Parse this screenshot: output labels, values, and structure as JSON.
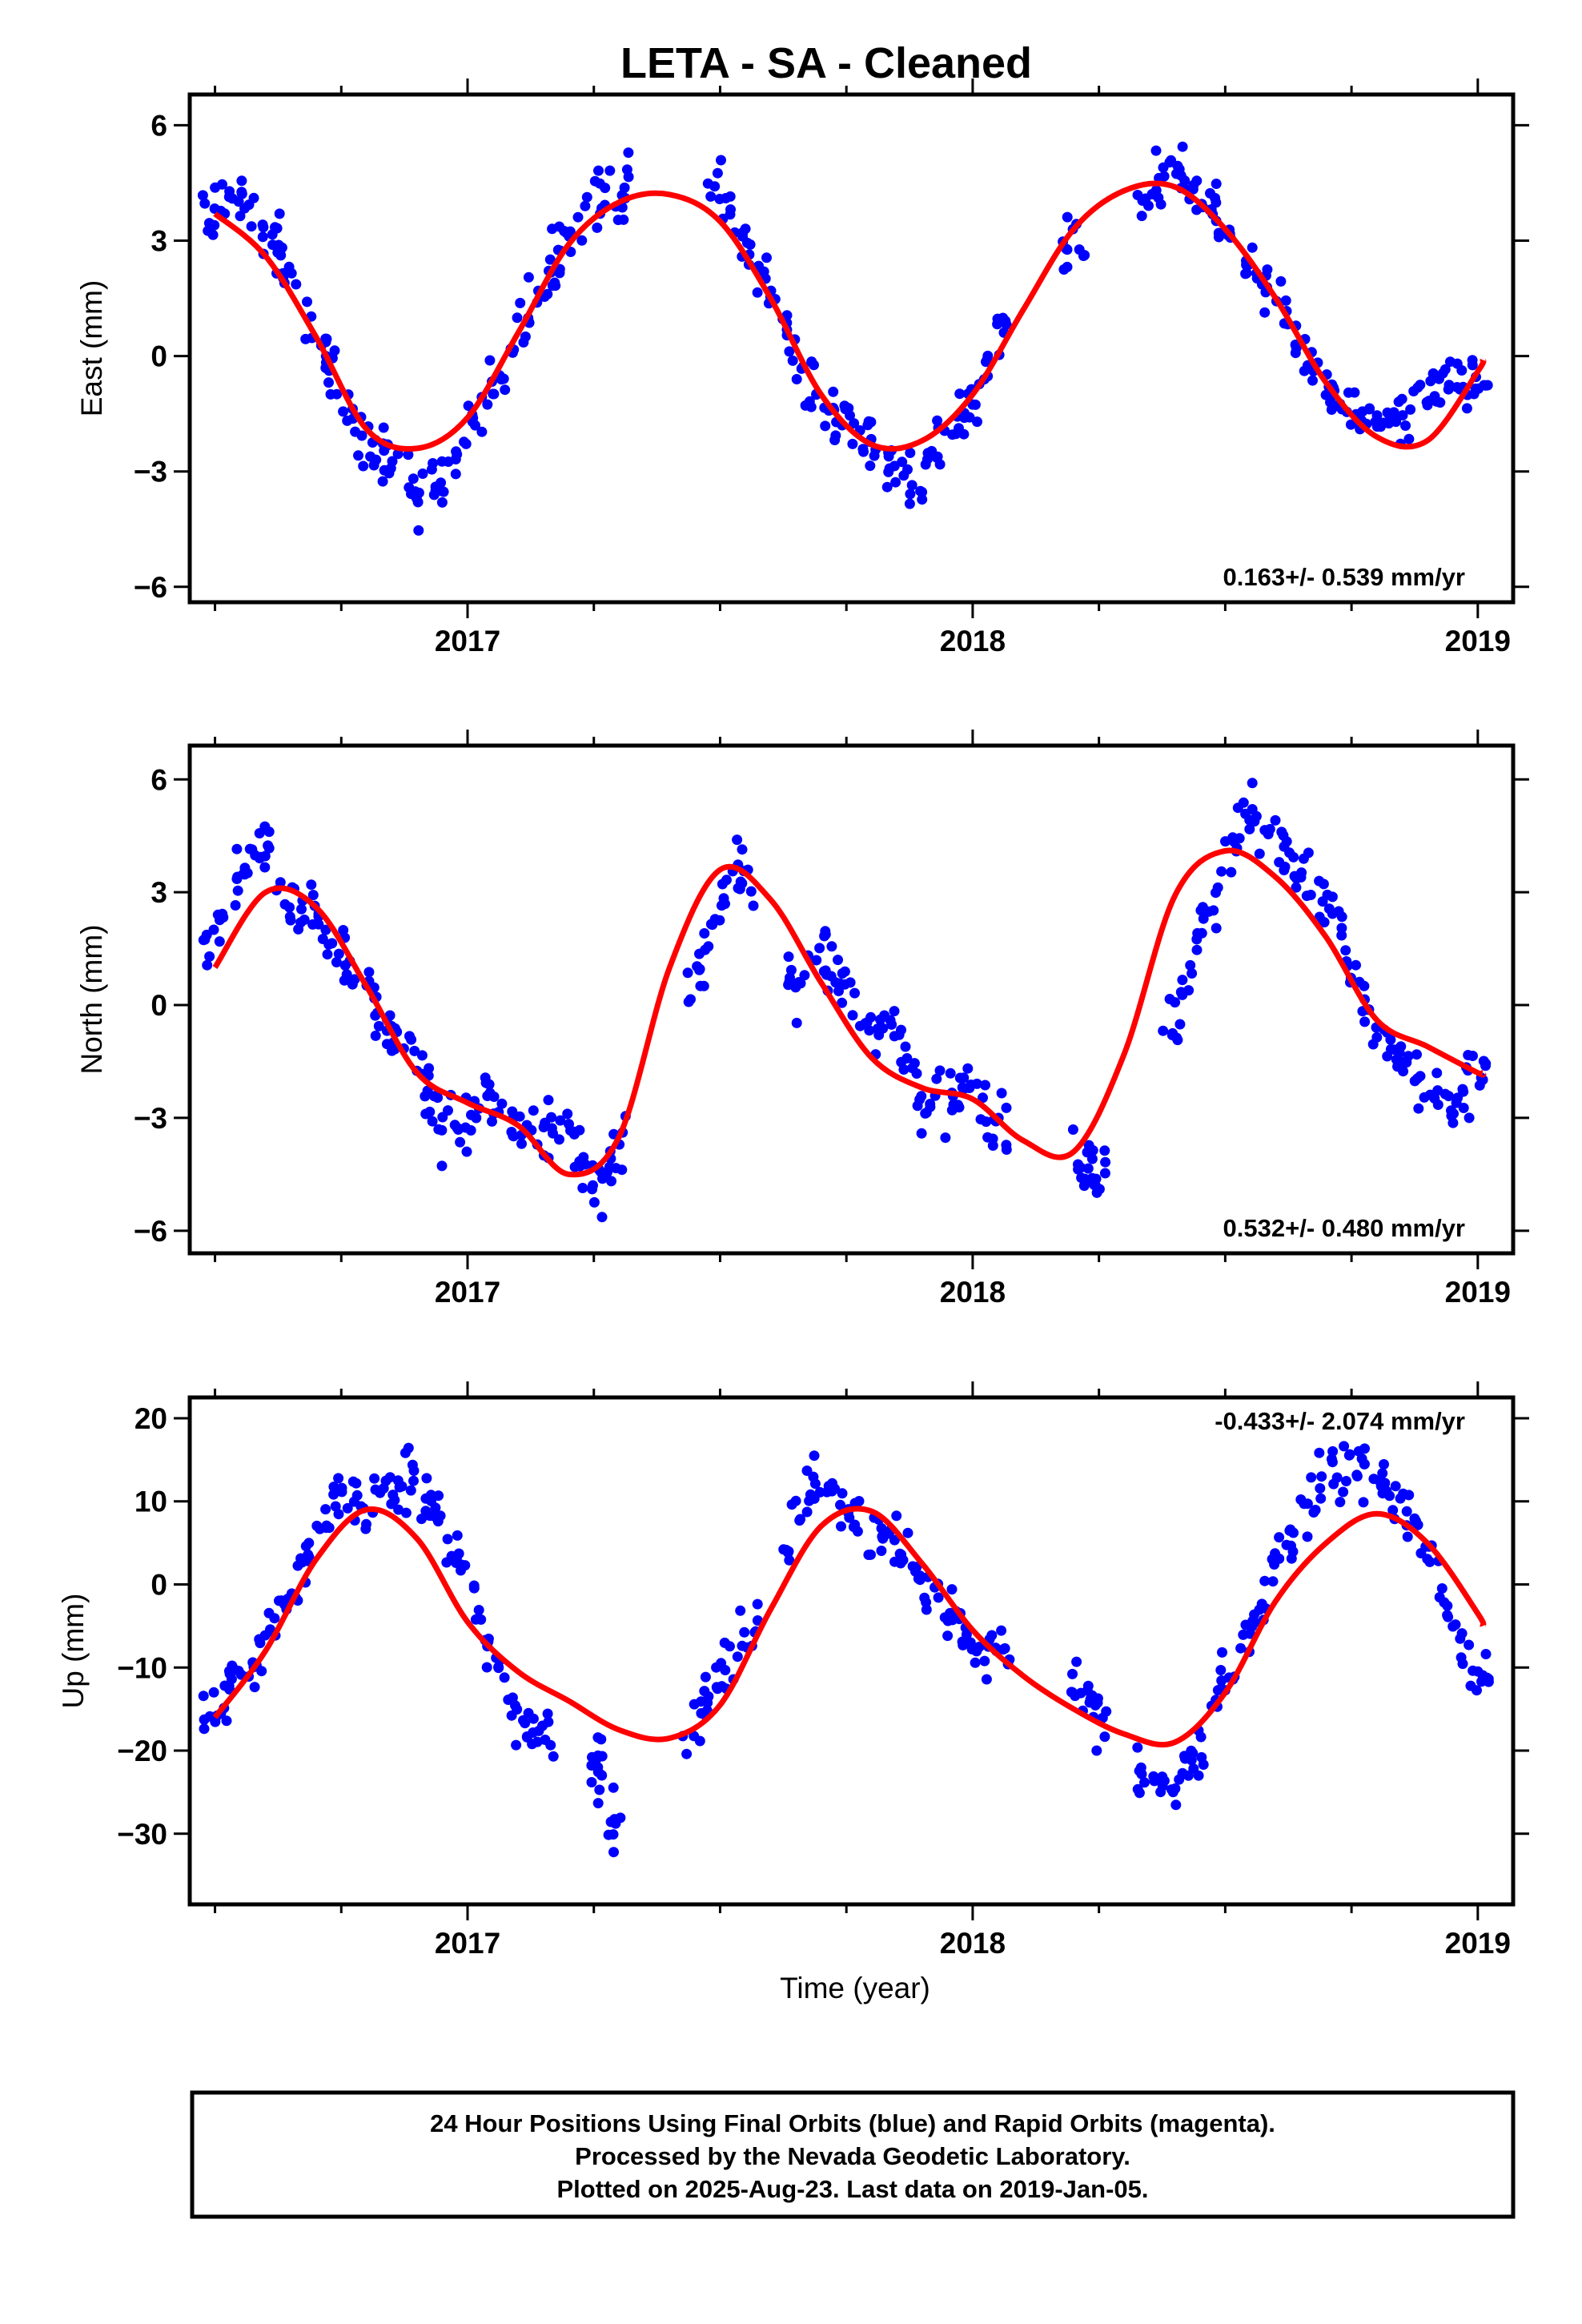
{
  "title": "LETA  - SA - Cleaned",
  "xlabel": "Time (year)",
  "footer": {
    "line1": "24 Hour Positions Using Final Orbits (blue) and Rapid Orbits (magenta).",
    "line2": "Processed by the Nevada Geodetic Laboratory.",
    "line3": "Plotted on 2025-Aug-23. Last data on 2019-Jan-05."
  },
  "colors": {
    "points": "#0000ff",
    "fit": "#ff0000",
    "axes": "#000000"
  },
  "chart_data": [
    {
      "type": "scatter",
      "ylabel": "East (mm)",
      "rate": "0.163+/- 0.539 mm/yr",
      "rate_position": "bottom-right",
      "xlim": [
        2016.45,
        2019.07
      ],
      "ylim": [
        -6.4,
        6.8
      ],
      "xticks": [
        "2017",
        "2018",
        "2019"
      ],
      "yticks": [
        -6,
        -3,
        0,
        3,
        6
      ],
      "fit_curve": {
        "x": [
          2016.5,
          2016.6,
          2016.7,
          2016.8,
          2016.9,
          2017.0,
          2017.1,
          2017.2,
          2017.3,
          2017.4,
          2017.5,
          2017.6,
          2017.7,
          2017.8,
          2017.9,
          2018.0,
          2018.1,
          2018.2,
          2018.3,
          2018.4,
          2018.5,
          2018.6,
          2018.7,
          2018.8,
          2018.9,
          2019.0,
          2019.01
        ],
        "y": [
          3.7,
          2.6,
          0.5,
          -1.9,
          -2.4,
          -1.6,
          0.6,
          2.9,
          4.0,
          4.2,
          3.5,
          1.5,
          -1.0,
          -2.3,
          -2.2,
          -1.0,
          1.2,
          3.3,
          4.3,
          4.4,
          3.3,
          1.5,
          -0.7,
          -2.1,
          -2.2,
          -0.4,
          -0.1
        ]
      },
      "points_outline": {
        "x": [
          2016.5,
          2016.55,
          2016.6,
          2016.65,
          2016.7,
          2016.75,
          2016.8,
          2016.85,
          2016.9,
          2016.95,
          2017.0,
          2017.05,
          2017.1,
          2017.15,
          2017.2,
          2017.25,
          2017.3,
          2017.5,
          2017.55,
          2017.6,
          2017.65,
          2017.7,
          2017.75,
          2017.8,
          2017.85,
          2017.9,
          2017.95,
          2018.0,
          2018.05,
          2018.2,
          2018.35,
          2018.4,
          2018.45,
          2018.5,
          2018.55,
          2018.6,
          2018.65,
          2018.7,
          2018.75,
          2018.8,
          2018.85,
          2018.9,
          2018.95,
          2019.0
        ],
        "y": [
          3.8,
          4.2,
          3.0,
          2.3,
          0.5,
          -1.0,
          -2.0,
          -2.8,
          -3.5,
          -3.3,
          -1.9,
          -0.8,
          0.4,
          1.8,
          3.2,
          4.0,
          4.3,
          4.6,
          2.9,
          1.7,
          -0.3,
          -1.0,
          -1.6,
          -2.4,
          -2.8,
          -3.3,
          -2.0,
          -1.1,
          0.6,
          3.0,
          4.1,
          5.0,
          4.2,
          3.4,
          2.4,
          1.4,
          0.6,
          -0.8,
          -1.5,
          -1.8,
          -1.6,
          -1.3,
          -0.6,
          -0.9
        ]
      }
    },
    {
      "type": "scatter",
      "ylabel": "North (mm)",
      "rate": "0.532+/- 0.480 mm/yr",
      "rate_position": "bottom-right",
      "xlim": [
        2016.45,
        2019.07
      ],
      "ylim": [
        -6.6,
        6.9
      ],
      "xticks": [
        "2017",
        "2018",
        "2019"
      ],
      "yticks": [
        -6,
        -3,
        0,
        3,
        6
      ],
      "fit_curve": {
        "x": [
          2016.5,
          2016.6,
          2016.7,
          2016.8,
          2016.9,
          2017.0,
          2017.1,
          2017.2,
          2017.3,
          2017.4,
          2017.5,
          2017.6,
          2017.7,
          2017.8,
          2017.9,
          2018.0,
          2018.1,
          2018.2,
          2018.3,
          2018.4,
          2018.5,
          2018.6,
          2018.7,
          2018.8,
          2018.9,
          2019.0,
          2019.01
        ],
        "y": [
          1.0,
          3.0,
          2.6,
          0.5,
          -1.8,
          -2.6,
          -3.2,
          -4.5,
          -3.5,
          1.0,
          3.6,
          2.8,
          0.6,
          -1.4,
          -2.2,
          -2.5,
          -3.6,
          -3.9,
          -1.3,
          2.9,
          4.1,
          3.4,
          1.8,
          -0.4,
          -1.1,
          -1.8,
          -1.8
        ]
      },
      "points_outline": {
        "x": [
          2016.5,
          2016.55,
          2016.6,
          2016.65,
          2016.7,
          2016.75,
          2016.8,
          2016.85,
          2016.9,
          2016.95,
          2017.0,
          2017.05,
          2017.1,
          2017.15,
          2017.2,
          2017.25,
          2017.3,
          2017.45,
          2017.5,
          2017.55,
          2017.65,
          2017.7,
          2017.75,
          2017.8,
          2017.85,
          2017.9,
          2017.95,
          2018.0,
          2018.05,
          2018.22,
          2018.25,
          2018.4,
          2018.45,
          2018.5,
          2018.55,
          2018.6,
          2018.65,
          2018.7,
          2018.75,
          2018.8,
          2018.85,
          2018.9,
          2018.95,
          2019.0
        ],
        "y": [
          1.6,
          3.5,
          4.2,
          2.5,
          2.3,
          1.0,
          0.5,
          -0.6,
          -1.5,
          -3.4,
          -3.2,
          -2.0,
          -3.7,
          -3.0,
          -3.5,
          -4.8,
          -4.1,
          0.8,
          2.9,
          3.7,
          0.3,
          1.4,
          0.4,
          -0.4,
          -0.7,
          -2.6,
          -2.4,
          -2.1,
          -3.3,
          -4.3,
          -4.8,
          -0.5,
          2.0,
          3.7,
          5.4,
          4.2,
          3.5,
          2.8,
          0.8,
          -0.5,
          -1.5,
          -2.2,
          -2.8,
          -1.6
        ]
      }
    },
    {
      "type": "scatter",
      "ylabel": "Up (mm)",
      "rate": "-0.433+/- 2.074 mm/yr",
      "rate_position": "top-right",
      "xlim": [
        2016.45,
        2019.07
      ],
      "ylim": [
        -38.5,
        22.5
      ],
      "xticks": [
        "2017",
        "2018",
        "2019"
      ],
      "yticks": [
        -30,
        -20,
        -10,
        0,
        10,
        20
      ],
      "fit_curve": {
        "x": [
          2016.5,
          2016.6,
          2016.7,
          2016.8,
          2016.9,
          2017.0,
          2017.1,
          2017.2,
          2017.3,
          2017.4,
          2017.5,
          2017.6,
          2017.7,
          2017.8,
          2017.9,
          2018.0,
          2018.1,
          2018.2,
          2018.3,
          2018.4,
          2018.5,
          2018.6,
          2018.7,
          2018.8,
          2018.9,
          2019.0,
          2019.01
        ],
        "y": [
          -16.0,
          -8.0,
          3.0,
          9.0,
          5.5,
          -4.5,
          -10.5,
          -14.0,
          -17.5,
          -18.5,
          -14.5,
          -3.0,
          7.0,
          8.8,
          2.5,
          -5.5,
          -11.0,
          -15.0,
          -18.0,
          -19.0,
          -13.0,
          -2.0,
          5.0,
          8.5,
          5.0,
          -3.5,
          -5.0
        ]
      },
      "points_outline": {
        "x": [
          2016.5,
          2016.55,
          2016.6,
          2016.65,
          2016.7,
          2016.75,
          2016.8,
          2016.85,
          2016.9,
          2016.95,
          2017.0,
          2017.05,
          2017.1,
          2017.15,
          2017.27,
          2017.28,
          2017.45,
          2017.5,
          2017.55,
          2017.65,
          2017.7,
          2017.75,
          2017.8,
          2017.85,
          2017.9,
          2017.95,
          2018.0,
          2018.05,
          2018.22,
          2018.25,
          2018.35,
          2018.4,
          2018.45,
          2018.5,
          2018.55,
          2018.6,
          2018.65,
          2018.7,
          2018.75,
          2018.8,
          2018.85,
          2018.9,
          2018.95,
          2019.0
        ],
        "y": [
          -14.0,
          -12.0,
          -7.0,
          0.0,
          6.0,
          11.0,
          10.0,
          11.0,
          12.0,
          7.0,
          1.0,
          -9.0,
          -15.0,
          -18.0,
          -22.0,
          -30.0,
          -16.0,
          -12.0,
          -7.0,
          8.0,
          12.0,
          10.0,
          7.0,
          4.0,
          1.0,
          -3.0,
          -8.0,
          -9.0,
          -12.0,
          -15.0,
          -24.0,
          -25.0,
          -20.0,
          -10.0,
          -6.0,
          2.0,
          8.0,
          13.0,
          14.0,
          12.0,
          9.0,
          4.0,
          -5.0,
          -11.0
        ]
      }
    }
  ]
}
